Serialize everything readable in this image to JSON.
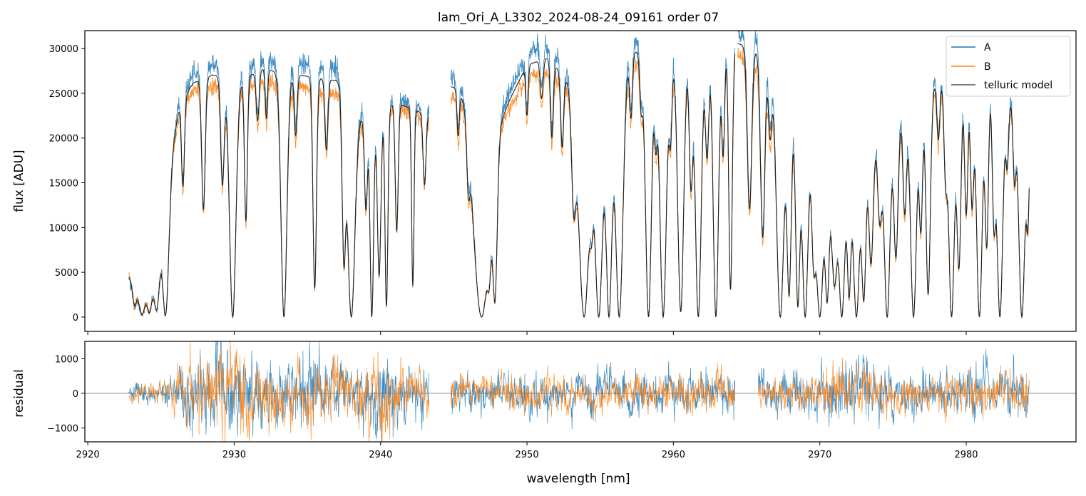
{
  "figure": {
    "title": "lam_Ori_A_L3302_2024-08-24_09161  order 07",
    "colors": {
      "A": "#1f77b4",
      "B": "#ff7f0e",
      "model": "#222222",
      "zero_line": "#777777"
    }
  },
  "chart_data": [
    {
      "type": "line",
      "panel": "spectrum",
      "title": "lam_Ori_A_L3302_2024-08-24_09161  order 07",
      "xlabel": "",
      "ylabel": "flux [ADU]",
      "xlim": [
        2919.8,
        2987.5
      ],
      "ylim": [
        -1600,
        32000
      ],
      "xticks": [
        2920,
        2930,
        2940,
        2950,
        2960,
        2970,
        2980
      ],
      "yticks": [
        0,
        5000,
        10000,
        15000,
        20000,
        25000,
        30000
      ],
      "ytick_labels": [
        "0",
        "5000",
        "10000",
        "15000",
        "20000",
        "25000",
        "30000"
      ],
      "legend": {
        "placement": "top-right",
        "entries": [
          "A",
          "B",
          "telluric model"
        ]
      },
      "segments": [
        [
          2922.8,
          2943.3
        ],
        [
          2944.8,
          2964.2
        ],
        [
          2964.4,
          2984.3
        ]
      ],
      "continuum": {
        "x": [
          2922.8,
          2924.5,
          2925.5,
          2926.3,
          2927.2,
          2928.5,
          2930.5,
          2932,
          2933.3,
          2935,
          2937,
          2939,
          2941,
          2943.3,
          2944.8,
          2946,
          2947.5,
          2948.5,
          2950,
          2951.5,
          2953,
          2955,
          2957,
          2958.5,
          2960,
          2962,
          2964,
          2965,
          2966.5,
          2968,
          2970,
          2972,
          2974,
          2976,
          2978,
          2980,
          2982,
          2984.3
        ],
        "A": [
          4500,
          6000,
          17000,
          24500,
          27000,
          28300,
          27500,
          29000,
          28500,
          28300,
          27800,
          22500,
          24500,
          23000,
          27000,
          26800,
          22000,
          24000,
          29500,
          30500,
          26500,
          23000,
          31000,
          30500,
          30000,
          30500,
          31500,
          32000,
          31000,
          25000,
          21000,
          15500,
          22000,
          24000,
          27000,
          29500,
          27000,
          22000
        ],
        "B": [
          4500,
          5800,
          16000,
          23000,
          25300,
          25800,
          25500,
          26500,
          26000,
          25500,
          25000,
          21000,
          23500,
          22000,
          24500,
          24300,
          20500,
          22500,
          26800,
          27500,
          25000,
          22000,
          28500,
          28200,
          28000,
          29000,
          30000,
          28500,
          27500,
          23500,
          20000,
          15000,
          20500,
          22500,
          25500,
          27500,
          25500,
          21000
        ]
      },
      "absorption_lines": [
        {
          "c": 2923.2,
          "w": 0.15,
          "d": 0.7
        },
        {
          "c": 2923.7,
          "w": 0.25,
          "d": 0.95
        },
        {
          "c": 2924.2,
          "w": 0.2,
          "d": 0.9
        },
        {
          "c": 2924.7,
          "w": 0.2,
          "d": 0.9
        },
        {
          "c": 2925.3,
          "w": 0.22,
          "d": 0.99
        },
        {
          "c": 2926.5,
          "w": 0.1,
          "d": 0.4
        },
        {
          "c": 2927.9,
          "w": 0.12,
          "d": 0.55
        },
        {
          "c": 2929.2,
          "w": 0.12,
          "d": 0.45
        },
        {
          "c": 2929.9,
          "w": 0.22,
          "d": 1.0
        },
        {
          "c": 2930.8,
          "w": 0.1,
          "d": 0.6
        },
        {
          "c": 2931.6,
          "w": 0.1,
          "d": 0.2
        },
        {
          "c": 2932.2,
          "w": 0.08,
          "d": 0.2
        },
        {
          "c": 2933.4,
          "w": 0.2,
          "d": 1.0
        },
        {
          "c": 2934.2,
          "w": 0.1,
          "d": 0.25
        },
        {
          "c": 2935.5,
          "w": 0.12,
          "d": 0.88
        },
        {
          "c": 2936.3,
          "w": 0.1,
          "d": 0.3
        },
        {
          "c": 2937.5,
          "w": 0.12,
          "d": 0.75
        },
        {
          "c": 2938.0,
          "w": 0.25,
          "d": 1.0
        },
        {
          "c": 2939.0,
          "w": 0.1,
          "d": 0.45
        },
        {
          "c": 2939.4,
          "w": 0.12,
          "d": 1.0
        },
        {
          "c": 2939.9,
          "w": 0.12,
          "d": 0.8
        },
        {
          "c": 2940.4,
          "w": 0.1,
          "d": 0.95
        },
        {
          "c": 2941.1,
          "w": 0.1,
          "d": 0.6
        },
        {
          "c": 2942.2,
          "w": 0.08,
          "d": 0.85
        },
        {
          "c": 2943.0,
          "w": 0.1,
          "d": 0.35
        },
        {
          "c": 2945.3,
          "w": 0.08,
          "d": 0.2
        },
        {
          "c": 2946.0,
          "w": 0.1,
          "d": 0.3
        },
        {
          "c": 2946.9,
          "w": 0.55,
          "d": 1.0
        },
        {
          "c": 2947.4,
          "w": 0.12,
          "d": 0.6
        },
        {
          "c": 2947.8,
          "w": 0.15,
          "d": 0.9
        },
        {
          "c": 2950.0,
          "w": 0.08,
          "d": 0.2
        },
        {
          "c": 2951.0,
          "w": 0.1,
          "d": 0.15
        },
        {
          "c": 2951.7,
          "w": 0.1,
          "d": 0.3
        },
        {
          "c": 2952.4,
          "w": 0.1,
          "d": 0.3
        },
        {
          "c": 2953.2,
          "w": 0.15,
          "d": 0.5
        },
        {
          "c": 2953.9,
          "w": 0.35,
          "d": 1.0
        },
        {
          "c": 2954.4,
          "w": 0.12,
          "d": 0.4
        },
        {
          "c": 2954.9,
          "w": 0.25,
          "d": 1.0
        },
        {
          "c": 2955.6,
          "w": 0.2,
          "d": 1.0
        },
        {
          "c": 2956.3,
          "w": 0.25,
          "d": 1.0
        },
        {
          "c": 2957.1,
          "w": 0.1,
          "d": 0.25
        },
        {
          "c": 2957.8,
          "w": 0.1,
          "d": 0.2
        },
        {
          "c": 2958.3,
          "w": 0.2,
          "d": 1.0
        },
        {
          "c": 2958.8,
          "w": 0.1,
          "d": 0.3
        },
        {
          "c": 2959.3,
          "w": 0.22,
          "d": 1.0
        },
        {
          "c": 2959.8,
          "w": 0.1,
          "d": 0.3
        },
        {
          "c": 2960.5,
          "w": 0.2,
          "d": 0.98
        },
        {
          "c": 2961.2,
          "w": 0.12,
          "d": 0.5
        },
        {
          "c": 2961.7,
          "w": 0.2,
          "d": 1.0
        },
        {
          "c": 2962.3,
          "w": 0.12,
          "d": 0.4
        },
        {
          "c": 2962.9,
          "w": 0.18,
          "d": 1.0
        },
        {
          "c": 2963.4,
          "w": 0.1,
          "d": 0.4
        },
        {
          "c": 2963.9,
          "w": 0.12,
          "d": 0.9
        },
        {
          "c": 2965.2,
          "w": 0.15,
          "d": 0.6
        },
        {
          "c": 2966.1,
          "w": 0.15,
          "d": 0.7
        },
        {
          "c": 2966.6,
          "w": 0.12,
          "d": 0.3
        },
        {
          "c": 2967.3,
          "w": 0.25,
          "d": 1.0
        },
        {
          "c": 2967.9,
          "w": 0.15,
          "d": 0.9
        },
        {
          "c": 2968.5,
          "w": 0.15,
          "d": 0.95
        },
        {
          "c": 2969.0,
          "w": 0.2,
          "d": 1.0
        },
        {
          "c": 2969.6,
          "w": 0.15,
          "d": 0.7
        },
        {
          "c": 2970.0,
          "w": 0.25,
          "d": 1.0
        },
        {
          "c": 2970.5,
          "w": 0.15,
          "d": 0.9
        },
        {
          "c": 2971.0,
          "w": 0.2,
          "d": 0.8
        },
        {
          "c": 2971.5,
          "w": 0.2,
          "d": 1.0
        },
        {
          "c": 2972.0,
          "w": 0.12,
          "d": 0.85
        },
        {
          "c": 2972.5,
          "w": 0.2,
          "d": 1.0
        },
        {
          "c": 2973.0,
          "w": 0.15,
          "d": 0.9
        },
        {
          "c": 2973.5,
          "w": 0.15,
          "d": 0.7
        },
        {
          "c": 2974.1,
          "w": 0.15,
          "d": 0.5
        },
        {
          "c": 2974.6,
          "w": 0.2,
          "d": 1.0
        },
        {
          "c": 2975.2,
          "w": 0.15,
          "d": 0.7
        },
        {
          "c": 2975.8,
          "w": 0.12,
          "d": 0.5
        },
        {
          "c": 2976.4,
          "w": 0.2,
          "d": 1.0
        },
        {
          "c": 2976.9,
          "w": 0.12,
          "d": 0.6
        },
        {
          "c": 2977.4,
          "w": 0.15,
          "d": 0.9
        },
        {
          "c": 2978.1,
          "w": 0.1,
          "d": 0.25
        },
        {
          "c": 2978.6,
          "w": 0.12,
          "d": 0.4
        },
        {
          "c": 2979.0,
          "w": 0.2,
          "d": 1.0
        },
        {
          "c": 2979.5,
          "w": 0.15,
          "d": 0.8
        },
        {
          "c": 2980.0,
          "w": 0.12,
          "d": 0.6
        },
        {
          "c": 2980.4,
          "w": 0.12,
          "d": 0.55
        },
        {
          "c": 2980.9,
          "w": 0.2,
          "d": 1.0
        },
        {
          "c": 2981.4,
          "w": 0.12,
          "d": 0.7
        },
        {
          "c": 2981.9,
          "w": 0.12,
          "d": 0.6
        },
        {
          "c": 2982.3,
          "w": 0.2,
          "d": 1.0
        },
        {
          "c": 2982.8,
          "w": 0.1,
          "d": 0.3
        },
        {
          "c": 2983.3,
          "w": 0.1,
          "d": 0.35
        },
        {
          "c": 2983.8,
          "w": 0.2,
          "d": 1.0
        },
        {
          "c": 2984.2,
          "w": 0.1,
          "d": 0.5
        }
      ],
      "noise": {
        "A": 600,
        "B": 450
      },
      "series": [
        {
          "name": "A",
          "color": "#1f77b4"
        },
        {
          "name": "B",
          "color": "#ff7f0e"
        },
        {
          "name": "telluric model",
          "color": "#222222"
        }
      ]
    },
    {
      "type": "line",
      "panel": "residual",
      "xlabel": "wavelength [nm]",
      "ylabel": "residual",
      "xlim": [
        2919.8,
        2987.5
      ],
      "ylim": [
        -1400,
        1500
      ],
      "xticks": [
        2920,
        2930,
        2940,
        2950,
        2960,
        2970,
        2980
      ],
      "xtick_labels": [
        "2920",
        "2930",
        "2940",
        "2950",
        "2960",
        "2970",
        "2980"
      ],
      "yticks": [
        -1000,
        0,
        1000
      ],
      "ytick_labels": [
        "−1000",
        "0",
        "1000"
      ],
      "zero_line": 0,
      "segments": [
        [
          2922.8,
          2943.3
        ],
        [
          2944.8,
          2964.2
        ],
        [
          2965.8,
          2984.3
        ]
      ],
      "amplitude": {
        "x": [
          2922.8,
          2925,
          2927,
          2930,
          2933,
          2936,
          2938,
          2940,
          2943,
          2945,
          2948,
          2950,
          2953,
          2955,
          2958,
          2961,
          2964,
          2966,
          2969,
          2972,
          2975,
          2978,
          2981,
          2984
        ],
        "values": [
          150,
          200,
          700,
          900,
          650,
          700,
          450,
          900,
          400,
          350,
          350,
          400,
          350,
          400,
          350,
          450,
          400,
          350,
          400,
          600,
          450,
          400,
          450,
          500
        ]
      },
      "series": [
        {
          "name": "A",
          "color": "#1f77b4"
        },
        {
          "name": "B",
          "color": "#ff7f0e"
        }
      ]
    }
  ]
}
